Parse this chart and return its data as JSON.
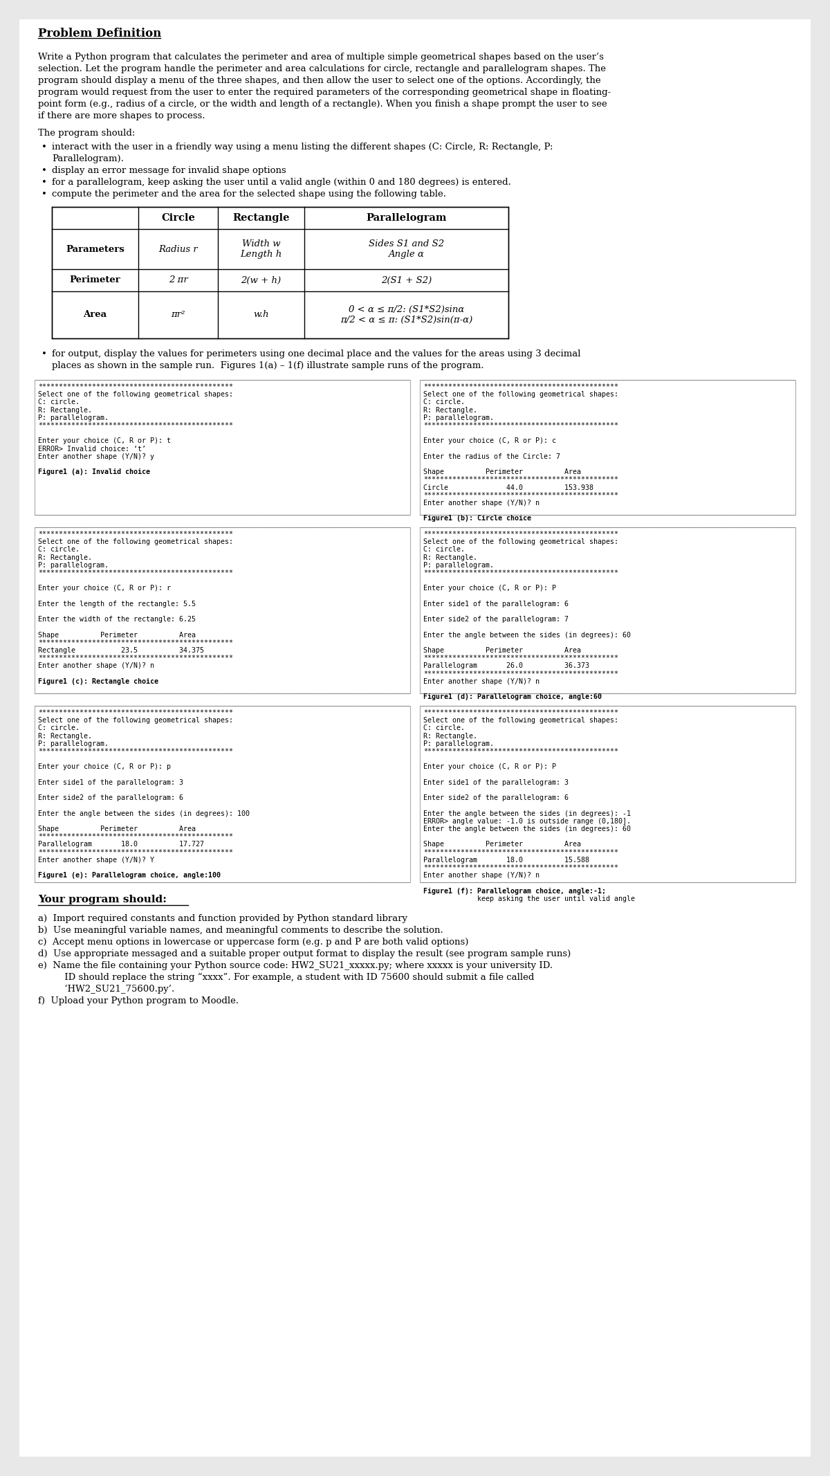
{
  "bg_color": "#e8e8e8",
  "page_bg": "#ffffff",
  "title": "Problem Definition",
  "intro_text": "Write a Python program that calculates the perimeter and area of multiple simple geometrical shapes based on the user’s\nselection. Let the program handle the perimeter and area calculations for circle, rectangle and parallelogram shapes. The\nprogram should display a menu of the three shapes, and then allow the user to select one of the options. Accordingly, the\nprogram would request from the user to enter the required parameters of the corresponding geometrical shape in floating-\npoint form (e.g., radius of a circle, or the width and length of a rectangle). When you finish a shape prompt the user to see\nif there are more shapes to process.",
  "should_label": "The program should:",
  "bullets": [
    "interact with the user in a friendly way using a menu listing the different shapes (C: Circle, R: Rectangle, P:\nParallelogram).",
    "display an error message for invalid shape options",
    "for a parallelogram, keep asking the user until a valid angle (within 0 and 180 degrees) is entered.",
    "compute the perimeter and the area for the selected shape using the following table."
  ],
  "table_headers": [
    "",
    "Circle",
    "Rectangle",
    "Parallelogram"
  ],
  "table_rows": [
    [
      "Parameters",
      "Radius r",
      "Width w\nLength h",
      "Sides S1 and S2\nAngle α"
    ],
    [
      "Perimeter",
      "2 πr",
      "2(w + h)",
      "2(S1 + S2)"
    ],
    [
      "Area",
      "πr²",
      "w.h",
      "0 < α ≤ π/2: (S1*S2)sinα\nπ/2 < α ≤ π: (S1*S2)sin(π-α)"
    ]
  ],
  "output_bullet": "for output, display the values for perimeters using one decimal place and the values for the areas using 3 decimal\nplaces as shown in the sample run.  Figures 1(a) – 1(f) illustrate sample runs of the program.",
  "fig_a_left": "***********************************************\nSelect one of the following geometrical shapes:\nC: circle.\nR: Rectangle.\nP: parallelogram.\n***********************************************\n\nEnter your choice (C, R or P): t\nERROR> Invalid choice: ‘t’\nEnter another shape (Y/N)? y\n\nFigure1 (a): Invalid choice",
  "fig_b_right": "***********************************************\nSelect one of the following geometrical shapes:\nC: circle.\nR: Rectangle.\nP: parallelogram.\n***********************************************\n\nEnter your choice (C, R or P): c\n\nEnter the radius of the Circle: 7\n\nShape          Perimeter          Area\n***********************************************\nCircle              44.0          153.938\n***********************************************\nEnter another shape (Y/N)? n\n\nFigure1 (b): Circle choice",
  "fig_c_left": "***********************************************\nSelect one of the following geometrical shapes:\nC: circle.\nR: Rectangle.\nP: parallelogram.\n***********************************************\n\nEnter your choice (C, R or P): r\n\nEnter the length of the rectangle: 5.5\n\nEnter the width of the rectangle: 6.25\n\nShape          Perimeter          Area\n***********************************************\nRectangle           23.5          34.375\n***********************************************\nEnter another shape (Y/N)? n\n\nFigure1 (c): Rectangle choice",
  "fig_d_right": "***********************************************\nSelect one of the following geometrical shapes:\nC: circle.\nR: Rectangle.\nP: parallelogram.\n***********************************************\n\nEnter your choice (C, R or P): P\n\nEnter side1 of the parallelogram: 6\n\nEnter side2 of the parallelogram: 7\n\nEnter the angle between the sides (in degrees): 60\n\nShape          Perimeter          Area\n***********************************************\nParallelogram       26.0          36.373\n***********************************************\nEnter another shape (Y/N)? n\n\nFigure1 (d): Parallelogram choice, angle:60",
  "fig_e_left": "***********************************************\nSelect one of the following geometrical shapes:\nC: circle.\nR: Rectangle.\nP: parallelogram.\n***********************************************\n\nEnter your choice (C, R or P): p\n\nEnter side1 of the parallelogram: 3\n\nEnter side2 of the parallelogram: 6\n\nEnter the angle between the sides (in degrees): 100\n\nShape          Perimeter          Area\n***********************************************\nParallelogram       18.0          17.727\n***********************************************\nEnter another shape (Y/N)? Y\n\nFigure1 (e): Parallelogram choice, angle:100",
  "fig_f_right": "***********************************************\nSelect one of the following geometrical shapes:\nC: circle.\nR: Rectangle.\nP: parallelogram.\n***********************************************\n\nEnter your choice (C, R or P): P\n\nEnter side1 of the parallelogram: 3\n\nEnter side2 of the parallelogram: 6\n\nEnter the angle between the sides (in degrees): -1\nERROR> angle value: -1.0 is outside range (0,180].\nEnter the angle between the sides (in degrees): 60\n\nShape          Perimeter          Area\n***********************************************\nParallelogram       18.0          15.588\n***********************************************\nEnter another shape (Y/N)? n\n\nFigure1 (f): Parallelogram choice, angle:-1;\n             keep asking the user until valid angle",
  "your_program_label": "Your program should:",
  "your_program_bullets": [
    "a)  Import required constants and function provided by Python standard library",
    "b)  Use meaningful variable names, and meaningful comments to describe the solution.",
    "c)  Accept menu options in lowercase or uppercase form (e.g. p and P are both valid options)",
    "d)  Use appropriate messaged and a suitable proper output format to display the result (see program sample runs)",
    "e)  Name the file containing your Python source code: HW2_SU21_xxxxx.py; where xxxxx is your university ID.\n     ID should replace the string “xxxx”. For example, a student with ID 75600 should submit a file called\n     ‘HW2_SU21_75600.py’.",
    "f)  Upload your Python program to Moodle."
  ]
}
